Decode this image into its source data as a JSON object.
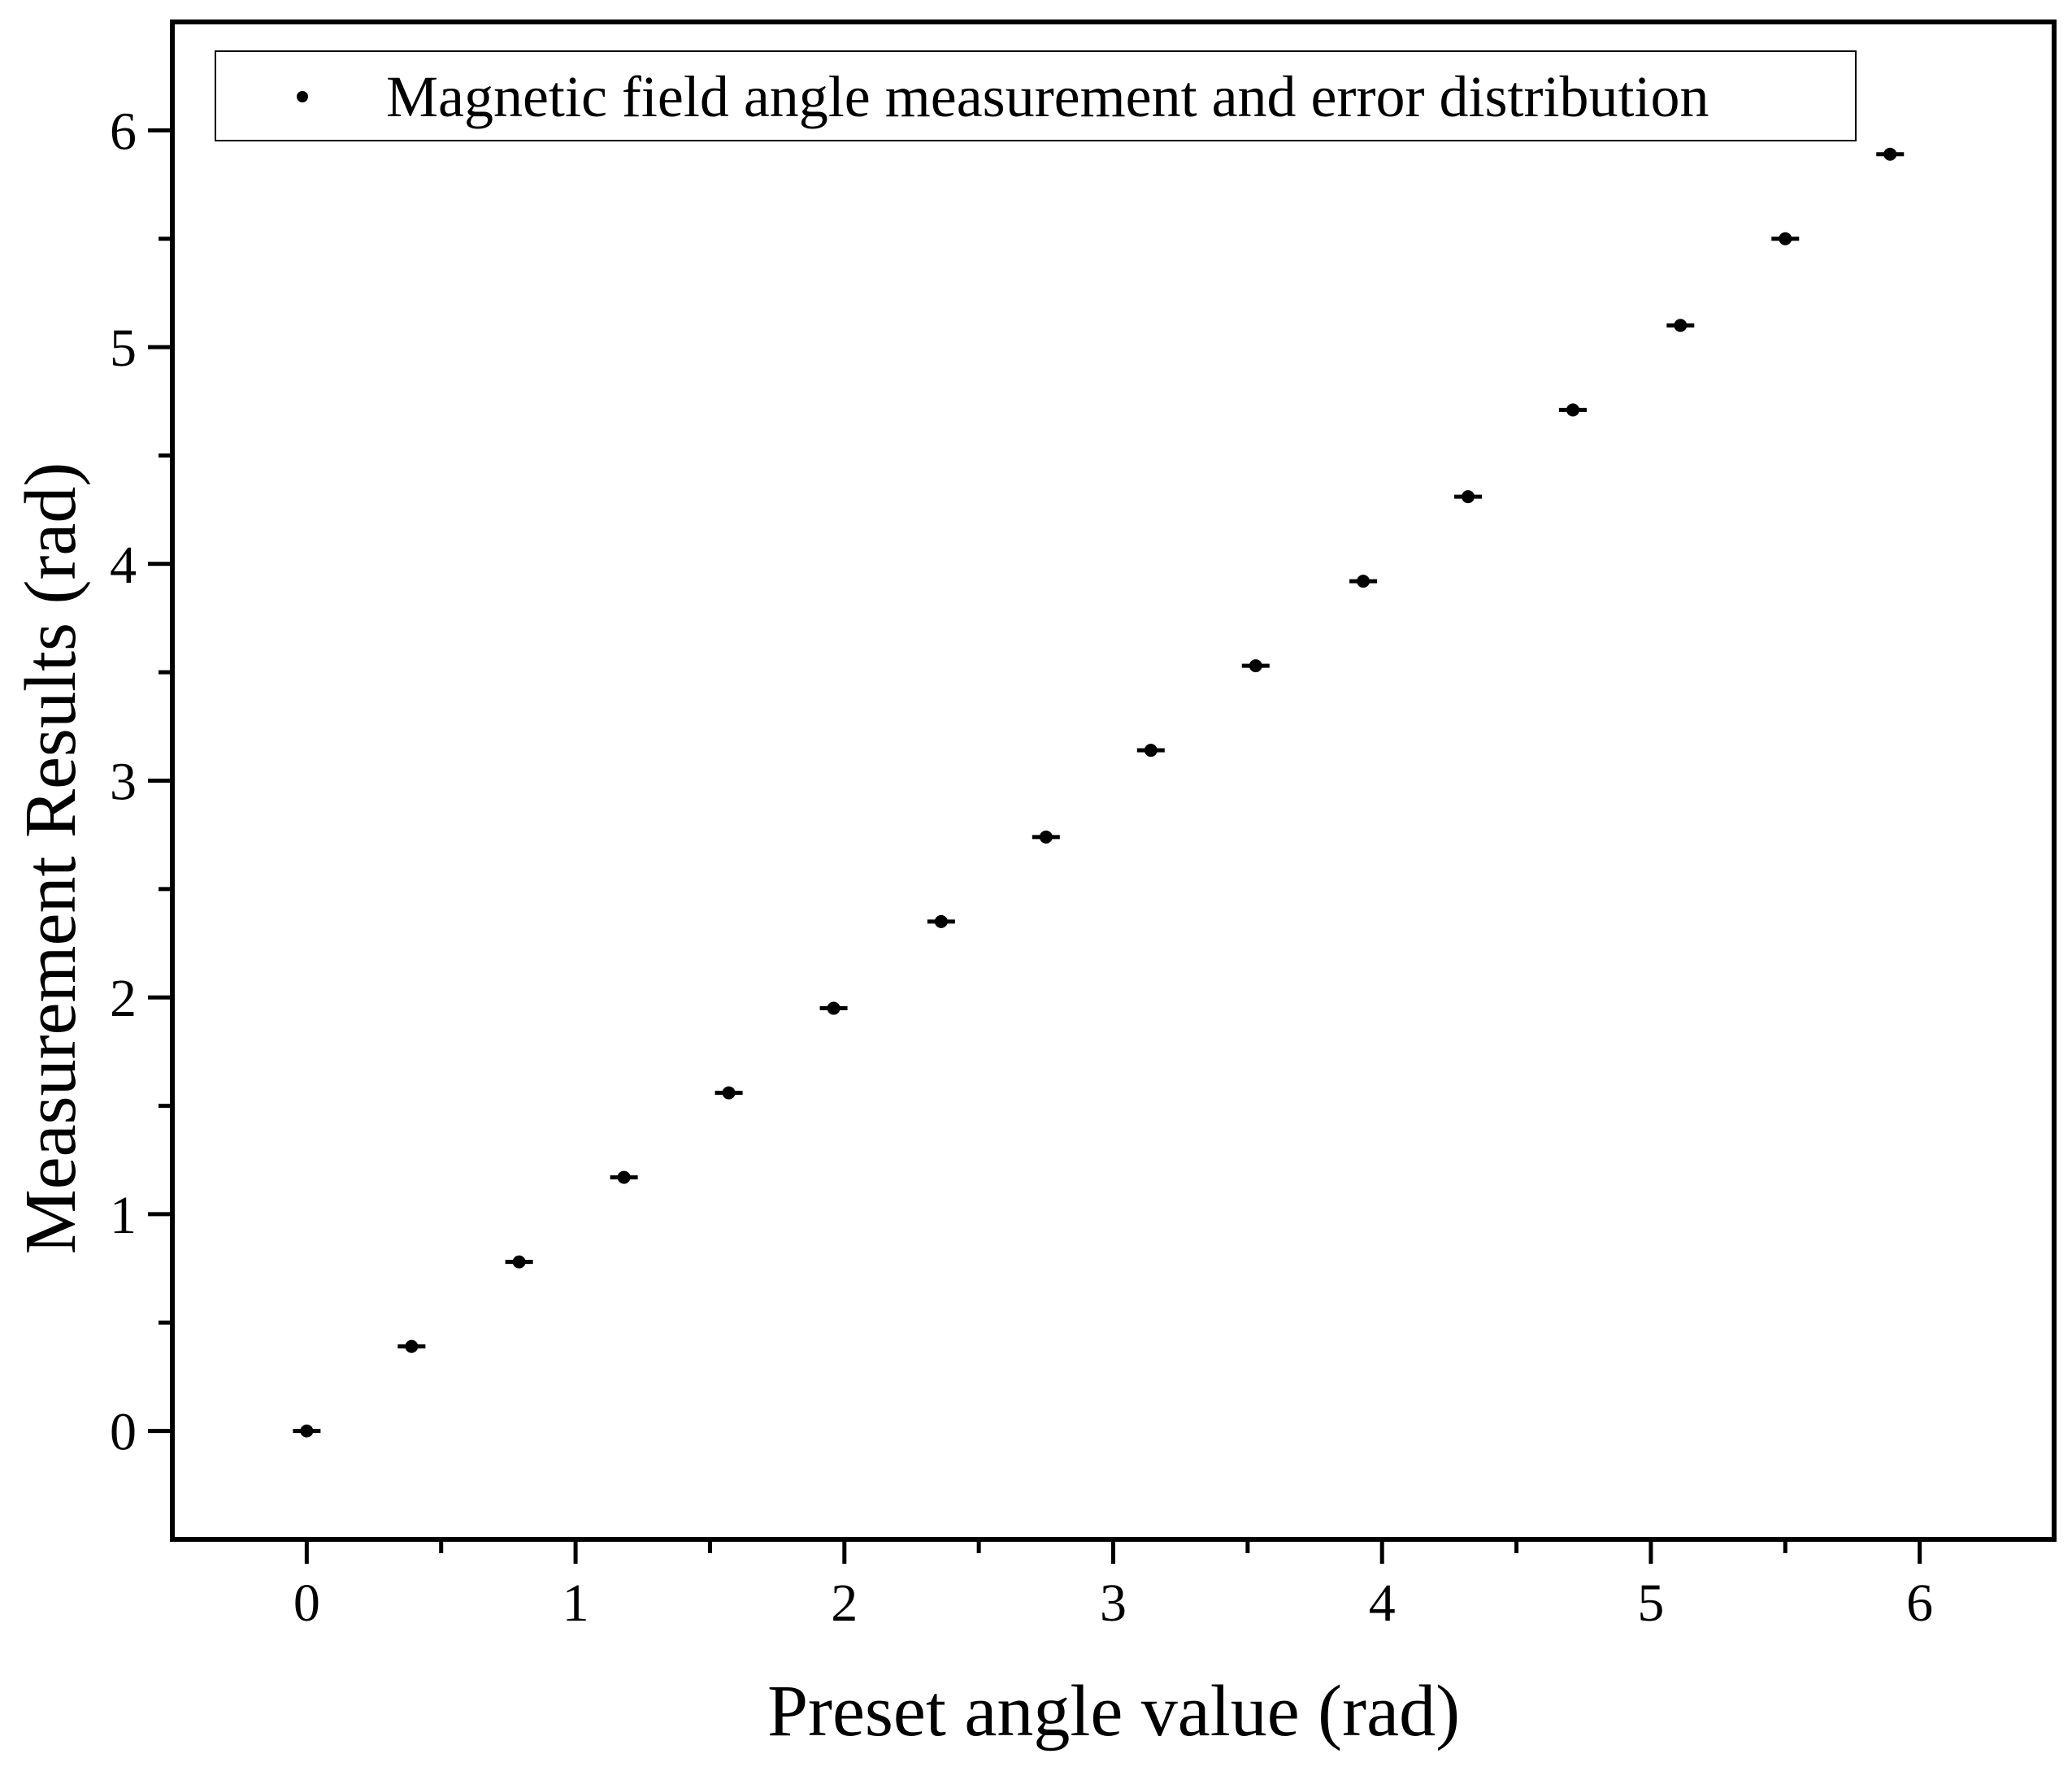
{
  "chart_data": {
    "type": "scatter",
    "title": "",
    "xlabel": "Preset angle value (rad)",
    "ylabel": "Measurement Results (rad)",
    "xlim": [
      -0.5,
      6.5
    ],
    "ylim": [
      -0.5,
      6.5
    ],
    "xticks": [
      0,
      1,
      2,
      3,
      4,
      5,
      6
    ],
    "yticks": [
      0,
      1,
      2,
      3,
      4,
      5,
      6
    ],
    "xtick_labels": [
      "0",
      "1",
      "2",
      "3",
      "4",
      "5",
      "6"
    ],
    "ytick_labels": [
      "0",
      "1",
      "2",
      "3",
      "4",
      "5",
      "6"
    ],
    "grid": false,
    "legend": {
      "position": "top-left",
      "entries": [
        "Magnetic field angle measurement and error distribution"
      ]
    },
    "series": [
      {
        "name": "Magnetic field angle measurement and error distribution",
        "color": "#000000",
        "marker": "dot",
        "x": [
          0.0,
          0.39,
          0.79,
          1.18,
          1.57,
          1.96,
          2.36,
          2.75,
          3.14,
          3.53,
          3.93,
          4.32,
          4.71,
          5.11,
          5.5,
          5.89
        ],
        "y": [
          0.0,
          0.39,
          0.78,
          1.17,
          1.56,
          1.95,
          2.35,
          2.74,
          3.14,
          3.53,
          3.92,
          4.31,
          4.71,
          5.1,
          5.5,
          5.89
        ]
      }
    ]
  }
}
